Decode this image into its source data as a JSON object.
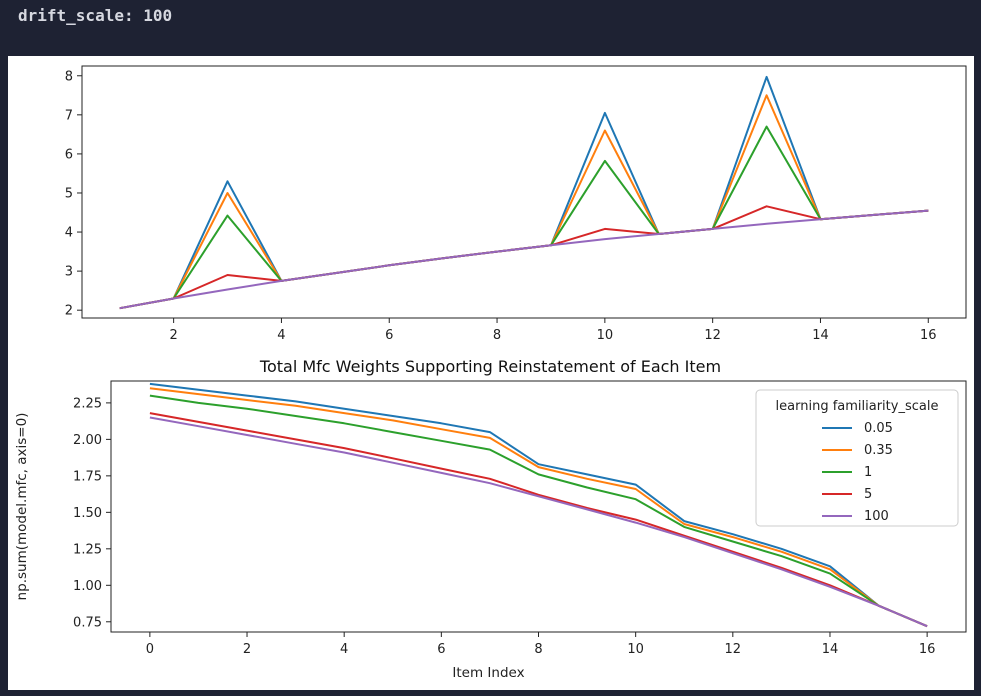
{
  "cell_output": {
    "text": "drift_scale: 100"
  },
  "chart_data": [
    {
      "type": "line",
      "title": "",
      "xlabel": "",
      "ylabel": "",
      "xlim": [
        0.3,
        16.7
      ],
      "ylim": [
        1.8,
        8.25
      ],
      "grid": false,
      "xticks": [
        2,
        4,
        6,
        8,
        10,
        12,
        14,
        16
      ],
      "yticks": [
        2,
        3,
        4,
        5,
        6,
        7,
        8
      ],
      "x": [
        1,
        2,
        3,
        4,
        5,
        6,
        7,
        8,
        9,
        10,
        11,
        12,
        13,
        14,
        15,
        16
      ],
      "series": [
        {
          "name": "0.05",
          "color": "#1f77b4",
          "values": [
            2.05,
            2.3,
            5.3,
            2.75,
            2.95,
            3.15,
            3.33,
            3.5,
            3.66,
            7.05,
            3.95,
            4.08,
            7.97,
            4.33,
            4.44,
            4.55
          ]
        },
        {
          "name": "0.35",
          "color": "#ff7f0e",
          "values": [
            2.05,
            2.3,
            5.0,
            2.75,
            2.95,
            3.15,
            3.33,
            3.5,
            3.66,
            6.6,
            3.95,
            4.08,
            7.5,
            4.33,
            4.44,
            4.55
          ]
        },
        {
          "name": "1",
          "color": "#2ca02c",
          "values": [
            2.05,
            2.3,
            4.42,
            2.75,
            2.95,
            3.15,
            3.33,
            3.5,
            3.66,
            5.82,
            3.95,
            4.08,
            6.7,
            4.33,
            4.44,
            4.55
          ]
        },
        {
          "name": "5",
          "color": "#d62728",
          "values": [
            2.05,
            2.3,
            2.9,
            2.75,
            2.95,
            3.15,
            3.33,
            3.5,
            3.66,
            4.08,
            3.95,
            4.08,
            4.66,
            4.33,
            4.44,
            4.55
          ]
        },
        {
          "name": "100",
          "color": "#9467bd",
          "values": [
            2.05,
            2.3,
            2.53,
            2.75,
            2.95,
            3.15,
            3.33,
            3.5,
            3.66,
            3.82,
            3.95,
            4.08,
            4.21,
            4.33,
            4.44,
            4.55
          ]
        }
      ]
    },
    {
      "type": "line",
      "title": "Total Mfc Weights Supporting Reinstatement of Each Item",
      "xlabel": "Item Index",
      "ylabel": "np.sum(model.mfc, axis=0)",
      "xlim": [
        -0.8,
        16.8
      ],
      "ylim": [
        0.68,
        2.4
      ],
      "grid": false,
      "legend": {
        "title": "learning familiarity_scale",
        "placement": "upper right"
      },
      "xticks": [
        0,
        2,
        4,
        6,
        8,
        10,
        12,
        14,
        16
      ],
      "yticks": [
        "0.75",
        "1.00",
        "1.25",
        "1.50",
        "1.75",
        "2.00",
        "2.25"
      ],
      "x": [
        0,
        1,
        2,
        3,
        4,
        5,
        6,
        7,
        8,
        9,
        10,
        11,
        12,
        13,
        14,
        15,
        16
      ],
      "series": [
        {
          "name": "0.05",
          "color": "#1f77b4",
          "values": [
            2.38,
            2.34,
            2.3,
            2.26,
            2.21,
            2.16,
            2.11,
            2.05,
            1.83,
            1.76,
            1.69,
            1.44,
            1.35,
            1.25,
            1.13,
            0.86,
            0.72
          ]
        },
        {
          "name": "0.35",
          "color": "#ff7f0e",
          "values": [
            2.35,
            2.31,
            2.27,
            2.23,
            2.18,
            2.13,
            2.07,
            2.01,
            1.81,
            1.73,
            1.66,
            1.42,
            1.33,
            1.23,
            1.11,
            0.86,
            0.72
          ]
        },
        {
          "name": "1",
          "color": "#2ca02c",
          "values": [
            2.3,
            2.25,
            2.21,
            2.16,
            2.11,
            2.05,
            1.99,
            1.93,
            1.76,
            1.67,
            1.59,
            1.4,
            1.3,
            1.2,
            1.08,
            0.86,
            0.72
          ]
        },
        {
          "name": "5",
          "color": "#d62728",
          "values": [
            2.18,
            2.12,
            2.06,
            2.0,
            1.94,
            1.87,
            1.8,
            1.73,
            1.62,
            1.53,
            1.45,
            1.34,
            1.23,
            1.12,
            1.0,
            0.86,
            0.72
          ]
        },
        {
          "name": "100",
          "color": "#9467bd",
          "values": [
            2.15,
            2.09,
            2.03,
            1.97,
            1.91,
            1.84,
            1.77,
            1.7,
            1.61,
            1.52,
            1.43,
            1.33,
            1.22,
            1.11,
            0.99,
            0.86,
            0.72
          ]
        }
      ]
    }
  ]
}
